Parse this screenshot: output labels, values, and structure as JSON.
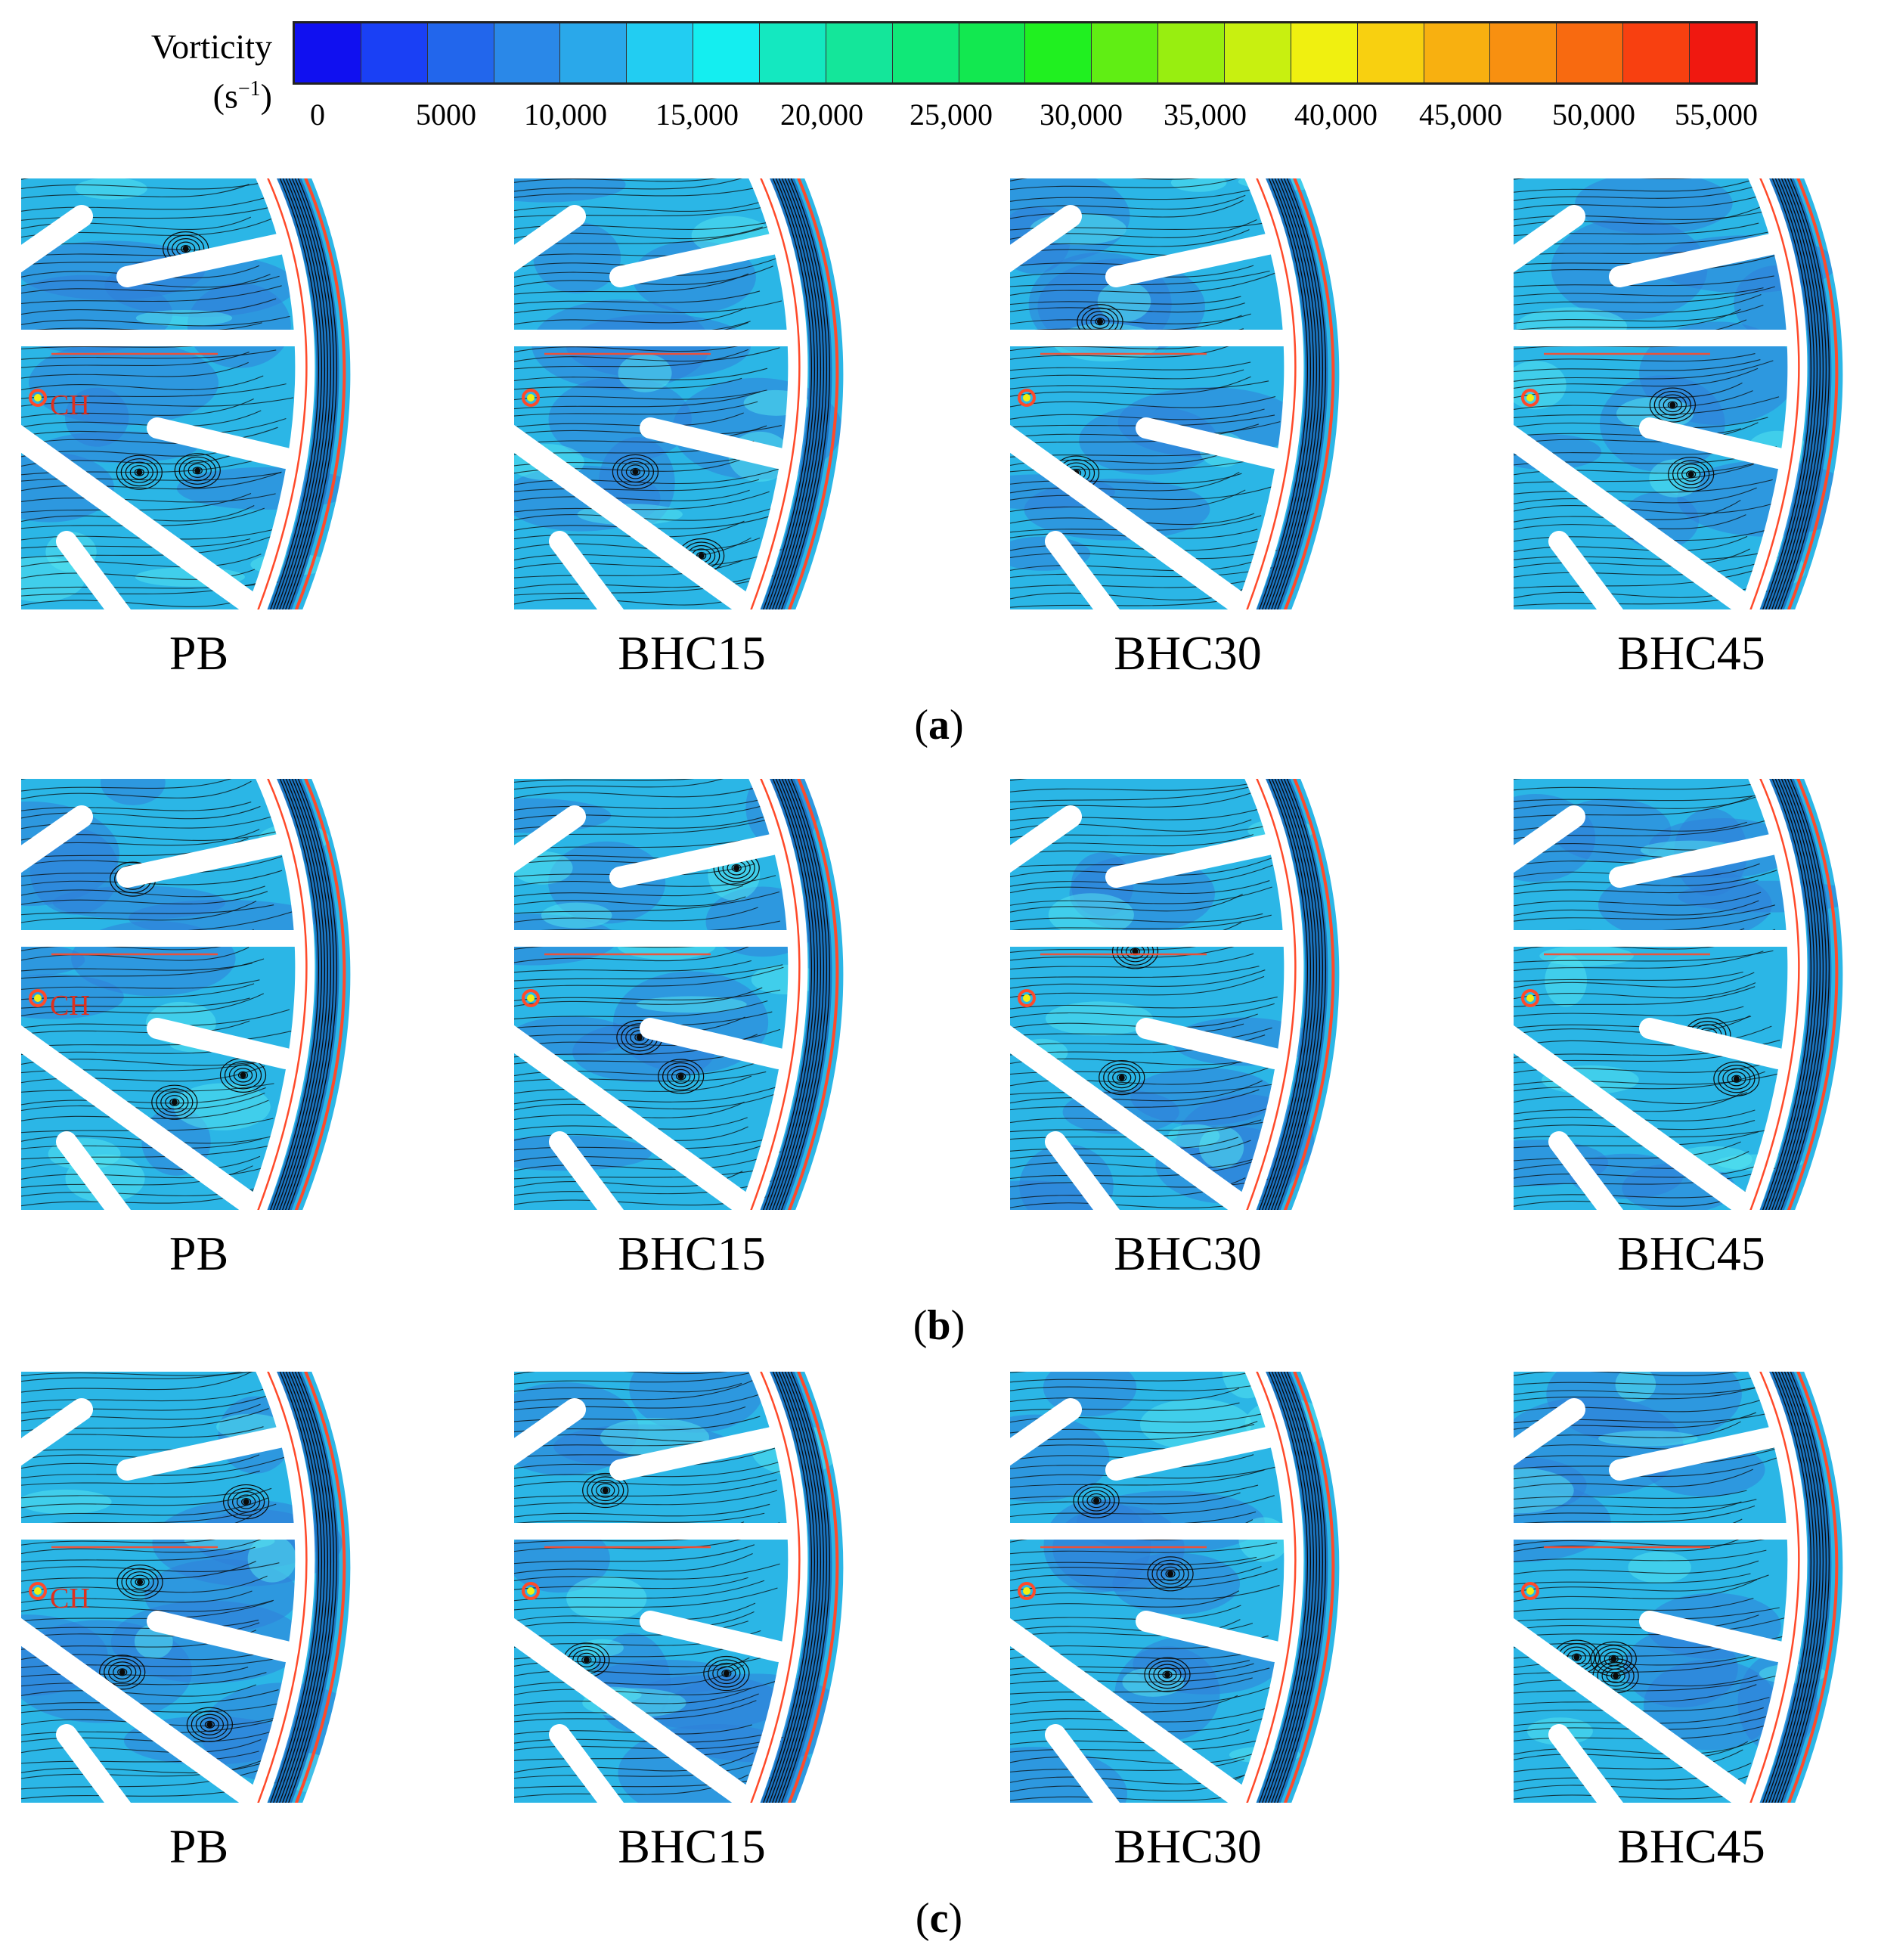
{
  "colorbar": {
    "title": "Vorticity",
    "unit_base": "(s",
    "unit_exp": "−1",
    "unit_close": ")",
    "ticks": [
      "0",
      "5000",
      "10,000",
      "15,000",
      "20,000",
      "25,000",
      "30,000",
      "35,000",
      "40,000",
      "45,000",
      "50,000",
      "55,000"
    ],
    "colors": [
      "#1010f0",
      "#1a40f5",
      "#2266ec",
      "#2a88e8",
      "#2aa8ea",
      "#22cdf2",
      "#14eef0",
      "#14e8c0",
      "#14e69a",
      "#10e878",
      "#12e850",
      "#20f020",
      "#60ee14",
      "#98ee10",
      "#c8f010",
      "#f0f010",
      "#f8d010",
      "#f8b010",
      "#f89010",
      "#f86a10",
      "#f84010",
      "#f01810"
    ]
  },
  "rows": [
    {
      "caption_open": "(",
      "caption_letter": "a",
      "caption_close": ")",
      "labels": [
        "PB",
        "BHC15",
        "BHC30",
        "BHC45"
      ],
      "marker": "CH"
    },
    {
      "caption_open": "(",
      "caption_letter": "b",
      "caption_close": ")",
      "labels": [
        "PB",
        "BHC15",
        "BHC30",
        "BHC45"
      ],
      "marker": "CH"
    },
    {
      "caption_open": "(",
      "caption_letter": "c",
      "caption_close": ")",
      "labels": [
        "PB",
        "BHC15",
        "BHC30",
        "BHC45"
      ],
      "marker": "CH"
    }
  ],
  "colors": {
    "field_base": "#2bb6e6",
    "field_low": "#2f7fd8",
    "streamline": "#0a0a0a",
    "wall_high": "#ff4a2a",
    "blade": "#ffffff",
    "ch_label": "#e0301e"
  }
}
